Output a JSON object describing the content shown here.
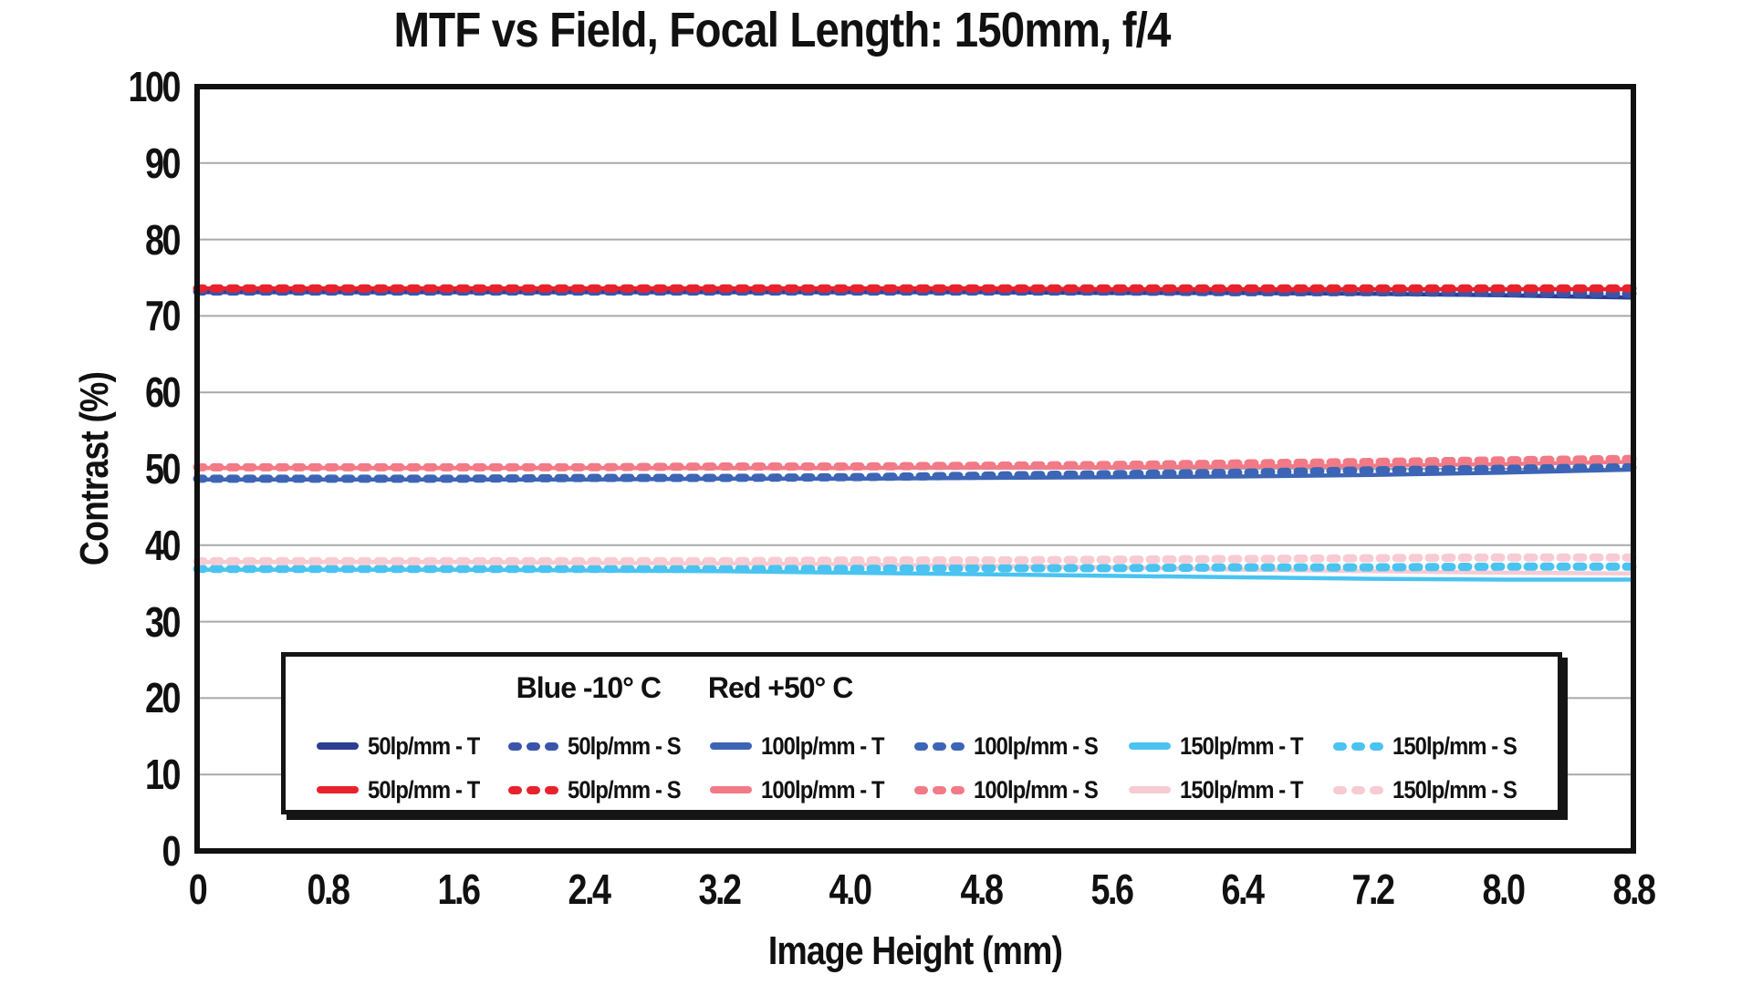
{
  "title": "MTF vs Field, Focal Length: 150mm, f/4",
  "axes": {
    "x_label": "Image Height (mm)",
    "y_label": "Contrast (%)"
  },
  "legend": {
    "header_blue": "Blue -10° C",
    "header_red": "Red +50° C",
    "rows": [
      {
        "temperature": "Blue -10° C",
        "items": [
          {
            "label": "50lp/mm - T",
            "style": "solid",
            "color": "#2c3e90"
          },
          {
            "label": "50lp/mm - S",
            "style": "dashed",
            "color": "#3a54ab"
          },
          {
            "label": "100lp/mm - T",
            "style": "solid",
            "color": "#3d65b6"
          },
          {
            "label": "100lp/mm - S",
            "style": "dashed",
            "color": "#3d65b6"
          },
          {
            "label": "150lp/mm - T",
            "style": "solid",
            "color": "#4ac3f0"
          },
          {
            "label": "150lp/mm - S",
            "style": "dashed",
            "color": "#4ac3f0"
          }
        ]
      },
      {
        "temperature": "Red +50° C",
        "items": [
          {
            "label": "50lp/mm - T",
            "style": "solid",
            "color": "#e8222d"
          },
          {
            "label": "50lp/mm - S",
            "style": "dashed",
            "color": "#e8222d"
          },
          {
            "label": "100lp/mm - T",
            "style": "solid",
            "color": "#f27a86"
          },
          {
            "label": "100lp/mm - S",
            "style": "dashed",
            "color": "#f27a86"
          },
          {
            "label": "150lp/mm - T",
            "style": "solid",
            "color": "#f8cbd3"
          },
          {
            "label": "150lp/mm - S",
            "style": "dashed",
            "color": "#f8cbd3"
          }
        ]
      }
    ]
  },
  "chart_data": {
    "type": "line",
    "title": "MTF vs Field, Focal Length: 150mm, f/4",
    "xlabel": "Image Height (mm)",
    "ylabel": "Contrast (%)",
    "xlim": [
      0,
      8.8
    ],
    "ylim": [
      0,
      100
    ],
    "grid": "horizontal-only",
    "grid_color": "#a9a9a9",
    "border_color": "#111111",
    "legend_position": "inside-bottom",
    "legend_note": "Blue -10° C    Red +50° C",
    "x_ticks": [
      0,
      0.8,
      1.6,
      2.4,
      3.2,
      4.0,
      4.8,
      5.6,
      6.4,
      7.2,
      8.0,
      8.8
    ],
    "x_tick_labels": [
      "0",
      "0.8",
      "1.6",
      "2.4",
      "3.2",
      "4.0",
      "4.8",
      "5.6",
      "6.4",
      "7.2",
      "8.0",
      "8.8"
    ],
    "y_ticks": [
      0,
      10,
      20,
      30,
      40,
      50,
      60,
      70,
      80,
      90,
      100
    ],
    "y_tick_labels": [
      "0",
      "10",
      "20",
      "30",
      "40",
      "50",
      "60",
      "70",
      "80",
      "90",
      "100"
    ],
    "x": [
      0,
      0.8,
      1.6,
      2.4,
      3.2,
      4.0,
      4.8,
      5.6,
      6.4,
      7.2,
      8.0,
      8.8
    ],
    "series": [
      {
        "name": "50lp/mm - T",
        "temperature": "Blue -10° C",
        "style": "solid",
        "color": "#2c3e90",
        "values": [
          73.1,
          73.1,
          73.1,
          73.1,
          73.1,
          73.1,
          73.1,
          73.0,
          73.0,
          72.9,
          72.7,
          72.4
        ]
      },
      {
        "name": "50lp/mm - S",
        "temperature": "Blue -10° C",
        "style": "dashed",
        "color": "#3a54ab",
        "values": [
          73.2,
          73.2,
          73.2,
          73.2,
          73.2,
          73.2,
          73.2,
          73.2,
          73.1,
          73.1,
          73.0,
          72.9
        ]
      },
      {
        "name": "100lp/mm - T",
        "temperature": "Blue -10° C",
        "style": "solid",
        "color": "#3d65b6",
        "values": [
          48.6,
          48.6,
          48.6,
          48.6,
          48.7,
          48.7,
          48.8,
          48.9,
          49.0,
          49.2,
          49.5,
          49.9
        ]
      },
      {
        "name": "100lp/mm - S",
        "temperature": "Blue -10° C",
        "style": "dashed",
        "color": "#3d65b6",
        "values": [
          48.7,
          48.7,
          48.7,
          48.8,
          48.8,
          48.9,
          49.1,
          49.3,
          49.5,
          49.8,
          50.0,
          50.2
        ]
      },
      {
        "name": "150lp/mm - T",
        "temperature": "Blue -10° C",
        "style": "solid",
        "color": "#4ac3f0",
        "values": [
          36.8,
          36.8,
          36.8,
          36.7,
          36.6,
          36.4,
          36.2,
          36.0,
          35.8,
          35.6,
          35.5,
          35.5
        ]
      },
      {
        "name": "150lp/mm - S",
        "temperature": "Blue -10° C",
        "style": "dashed",
        "color": "#4ac3f0",
        "values": [
          36.9,
          36.9,
          36.9,
          36.9,
          36.9,
          36.9,
          37.0,
          37.0,
          37.1,
          37.1,
          37.2,
          37.2
        ]
      },
      {
        "name": "50lp/mm - T",
        "temperature": "Red +50° C",
        "style": "solid",
        "color": "#e8222d",
        "values": [
          73.6,
          73.6,
          73.6,
          73.6,
          73.6,
          73.6,
          73.6,
          73.5,
          73.5,
          73.5,
          73.5,
          73.5
        ]
      },
      {
        "name": "50lp/mm - S",
        "temperature": "Red +50° C",
        "style": "dashed",
        "color": "#e8222d",
        "values": [
          73.6,
          73.6,
          73.6,
          73.6,
          73.6,
          73.6,
          73.6,
          73.6,
          73.6,
          73.6,
          73.6,
          73.6
        ]
      },
      {
        "name": "100lp/mm - T",
        "temperature": "Red +50° C",
        "style": "solid",
        "color": "#f27a86",
        "values": [
          50.1,
          50.1,
          50.1,
          50.1,
          50.1,
          50.1,
          50.2,
          50.2,
          50.3,
          50.4,
          50.6,
          50.9
        ]
      },
      {
        "name": "100lp/mm - S",
        "temperature": "Red +50° C",
        "style": "dashed",
        "color": "#f27a86",
        "values": [
          50.2,
          50.2,
          50.2,
          50.2,
          50.3,
          50.3,
          50.4,
          50.5,
          50.7,
          50.9,
          51.1,
          51.3
        ]
      },
      {
        "name": "150lp/mm - T",
        "temperature": "Red +50° C",
        "style": "solid",
        "color": "#f8cbd3",
        "values": [
          37.8,
          37.8,
          37.8,
          37.7,
          37.6,
          37.5,
          37.3,
          37.1,
          36.8,
          36.6,
          36.4,
          36.3
        ]
      },
      {
        "name": "150lp/mm - S",
        "temperature": "Red +50° C",
        "style": "dashed",
        "color": "#f8cbd3",
        "values": [
          37.9,
          37.9,
          37.9,
          37.9,
          37.9,
          38.0,
          38.0,
          38.1,
          38.2,
          38.3,
          38.4,
          38.4
        ]
      }
    ]
  }
}
